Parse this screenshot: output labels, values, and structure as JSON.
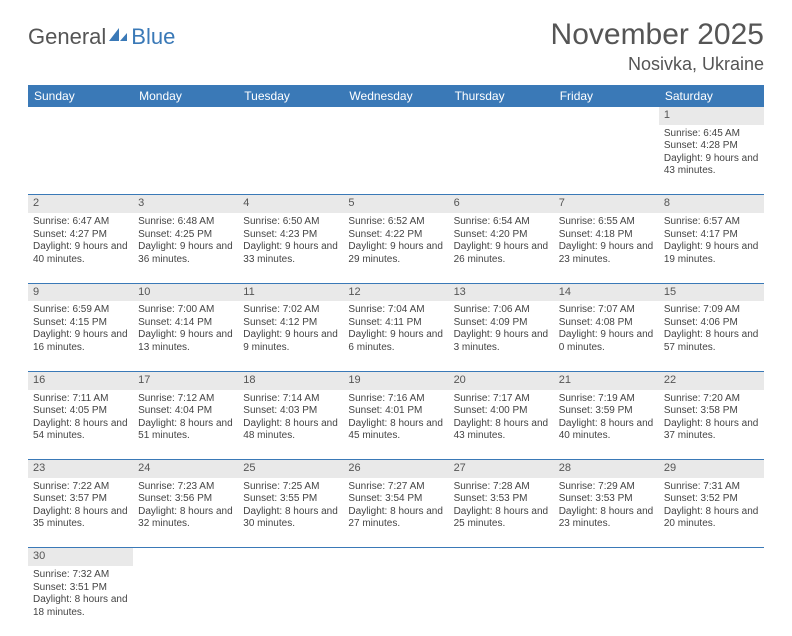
{
  "logo": {
    "part1": "General",
    "part2": "Blue"
  },
  "title": "November 2025",
  "location": "Nosivka, Ukraine",
  "colors": {
    "header_bg": "#3a79b7",
    "header_text": "#ffffff",
    "daynum_bg": "#e9e9e9",
    "row_border": "#3a79b7",
    "body_text": "#444444"
  },
  "weekdays": [
    "Sunday",
    "Monday",
    "Tuesday",
    "Wednesday",
    "Thursday",
    "Friday",
    "Saturday"
  ],
  "weeks": [
    [
      null,
      null,
      null,
      null,
      null,
      null,
      {
        "d": "1",
        "sr": "6:45 AM",
        "ss": "4:28 PM",
        "dl": "9 hours and 43 minutes."
      }
    ],
    [
      {
        "d": "2",
        "sr": "6:47 AM",
        "ss": "4:27 PM",
        "dl": "9 hours and 40 minutes."
      },
      {
        "d": "3",
        "sr": "6:48 AM",
        "ss": "4:25 PM",
        "dl": "9 hours and 36 minutes."
      },
      {
        "d": "4",
        "sr": "6:50 AM",
        "ss": "4:23 PM",
        "dl": "9 hours and 33 minutes."
      },
      {
        "d": "5",
        "sr": "6:52 AM",
        "ss": "4:22 PM",
        "dl": "9 hours and 29 minutes."
      },
      {
        "d": "6",
        "sr": "6:54 AM",
        "ss": "4:20 PM",
        "dl": "9 hours and 26 minutes."
      },
      {
        "d": "7",
        "sr": "6:55 AM",
        "ss": "4:18 PM",
        "dl": "9 hours and 23 minutes."
      },
      {
        "d": "8",
        "sr": "6:57 AM",
        "ss": "4:17 PM",
        "dl": "9 hours and 19 minutes."
      }
    ],
    [
      {
        "d": "9",
        "sr": "6:59 AM",
        "ss": "4:15 PM",
        "dl": "9 hours and 16 minutes."
      },
      {
        "d": "10",
        "sr": "7:00 AM",
        "ss": "4:14 PM",
        "dl": "9 hours and 13 minutes."
      },
      {
        "d": "11",
        "sr": "7:02 AM",
        "ss": "4:12 PM",
        "dl": "9 hours and 9 minutes."
      },
      {
        "d": "12",
        "sr": "7:04 AM",
        "ss": "4:11 PM",
        "dl": "9 hours and 6 minutes."
      },
      {
        "d": "13",
        "sr": "7:06 AM",
        "ss": "4:09 PM",
        "dl": "9 hours and 3 minutes."
      },
      {
        "d": "14",
        "sr": "7:07 AM",
        "ss": "4:08 PM",
        "dl": "9 hours and 0 minutes."
      },
      {
        "d": "15",
        "sr": "7:09 AM",
        "ss": "4:06 PM",
        "dl": "8 hours and 57 minutes."
      }
    ],
    [
      {
        "d": "16",
        "sr": "7:11 AM",
        "ss": "4:05 PM",
        "dl": "8 hours and 54 minutes."
      },
      {
        "d": "17",
        "sr": "7:12 AM",
        "ss": "4:04 PM",
        "dl": "8 hours and 51 minutes."
      },
      {
        "d": "18",
        "sr": "7:14 AM",
        "ss": "4:03 PM",
        "dl": "8 hours and 48 minutes."
      },
      {
        "d": "19",
        "sr": "7:16 AM",
        "ss": "4:01 PM",
        "dl": "8 hours and 45 minutes."
      },
      {
        "d": "20",
        "sr": "7:17 AM",
        "ss": "4:00 PM",
        "dl": "8 hours and 43 minutes."
      },
      {
        "d": "21",
        "sr": "7:19 AM",
        "ss": "3:59 PM",
        "dl": "8 hours and 40 minutes."
      },
      {
        "d": "22",
        "sr": "7:20 AM",
        "ss": "3:58 PM",
        "dl": "8 hours and 37 minutes."
      }
    ],
    [
      {
        "d": "23",
        "sr": "7:22 AM",
        "ss": "3:57 PM",
        "dl": "8 hours and 35 minutes."
      },
      {
        "d": "24",
        "sr": "7:23 AM",
        "ss": "3:56 PM",
        "dl": "8 hours and 32 minutes."
      },
      {
        "d": "25",
        "sr": "7:25 AM",
        "ss": "3:55 PM",
        "dl": "8 hours and 30 minutes."
      },
      {
        "d": "26",
        "sr": "7:27 AM",
        "ss": "3:54 PM",
        "dl": "8 hours and 27 minutes."
      },
      {
        "d": "27",
        "sr": "7:28 AM",
        "ss": "3:53 PM",
        "dl": "8 hours and 25 minutes."
      },
      {
        "d": "28",
        "sr": "7:29 AM",
        "ss": "3:53 PM",
        "dl": "8 hours and 23 minutes."
      },
      {
        "d": "29",
        "sr": "7:31 AM",
        "ss": "3:52 PM",
        "dl": "8 hours and 20 minutes."
      }
    ],
    [
      {
        "d": "30",
        "sr": "7:32 AM",
        "ss": "3:51 PM",
        "dl": "8 hours and 18 minutes."
      },
      null,
      null,
      null,
      null,
      null,
      null
    ]
  ],
  "labels": {
    "sunrise": "Sunrise:",
    "sunset": "Sunset:",
    "daylight": "Daylight:"
  }
}
